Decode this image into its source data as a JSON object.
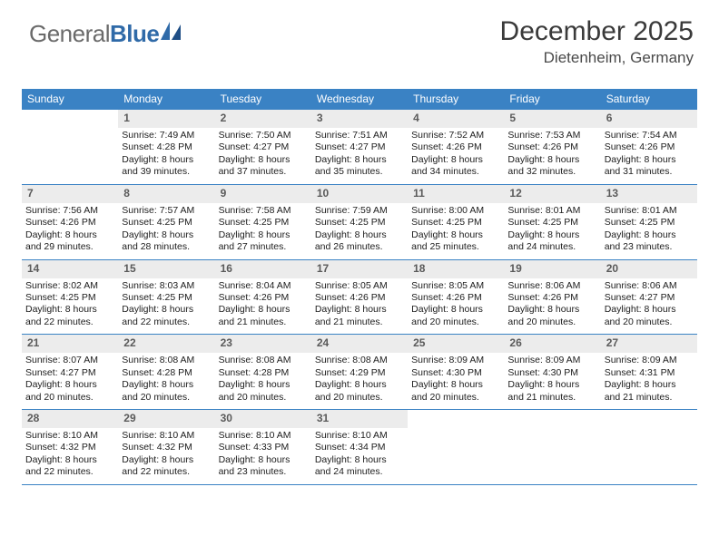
{
  "brand": {
    "part1": "General",
    "part2": "Blue"
  },
  "title": "December 2025",
  "location": "Dietenheim, Germany",
  "colors": {
    "header_bg": "#3a82c4",
    "header_text": "#ffffff",
    "daynum_bg": "#ececec",
    "rule": "#3a82c4",
    "title_color": "#3a3a3a"
  },
  "weekday_headers": [
    "Sunday",
    "Monday",
    "Tuesday",
    "Wednesday",
    "Thursday",
    "Friday",
    "Saturday"
  ],
  "weeks": [
    [
      {
        "n": "",
        "sunrise": "",
        "sunset": "",
        "daylight1": "",
        "daylight2": ""
      },
      {
        "n": "1",
        "sunrise": "Sunrise: 7:49 AM",
        "sunset": "Sunset: 4:28 PM",
        "daylight1": "Daylight: 8 hours",
        "daylight2": "and 39 minutes."
      },
      {
        "n": "2",
        "sunrise": "Sunrise: 7:50 AM",
        "sunset": "Sunset: 4:27 PM",
        "daylight1": "Daylight: 8 hours",
        "daylight2": "and 37 minutes."
      },
      {
        "n": "3",
        "sunrise": "Sunrise: 7:51 AM",
        "sunset": "Sunset: 4:27 PM",
        "daylight1": "Daylight: 8 hours",
        "daylight2": "and 35 minutes."
      },
      {
        "n": "4",
        "sunrise": "Sunrise: 7:52 AM",
        "sunset": "Sunset: 4:26 PM",
        "daylight1": "Daylight: 8 hours",
        "daylight2": "and 34 minutes."
      },
      {
        "n": "5",
        "sunrise": "Sunrise: 7:53 AM",
        "sunset": "Sunset: 4:26 PM",
        "daylight1": "Daylight: 8 hours",
        "daylight2": "and 32 minutes."
      },
      {
        "n": "6",
        "sunrise": "Sunrise: 7:54 AM",
        "sunset": "Sunset: 4:26 PM",
        "daylight1": "Daylight: 8 hours",
        "daylight2": "and 31 minutes."
      }
    ],
    [
      {
        "n": "7",
        "sunrise": "Sunrise: 7:56 AM",
        "sunset": "Sunset: 4:26 PM",
        "daylight1": "Daylight: 8 hours",
        "daylight2": "and 29 minutes."
      },
      {
        "n": "8",
        "sunrise": "Sunrise: 7:57 AM",
        "sunset": "Sunset: 4:25 PM",
        "daylight1": "Daylight: 8 hours",
        "daylight2": "and 28 minutes."
      },
      {
        "n": "9",
        "sunrise": "Sunrise: 7:58 AM",
        "sunset": "Sunset: 4:25 PM",
        "daylight1": "Daylight: 8 hours",
        "daylight2": "and 27 minutes."
      },
      {
        "n": "10",
        "sunrise": "Sunrise: 7:59 AM",
        "sunset": "Sunset: 4:25 PM",
        "daylight1": "Daylight: 8 hours",
        "daylight2": "and 26 minutes."
      },
      {
        "n": "11",
        "sunrise": "Sunrise: 8:00 AM",
        "sunset": "Sunset: 4:25 PM",
        "daylight1": "Daylight: 8 hours",
        "daylight2": "and 25 minutes."
      },
      {
        "n": "12",
        "sunrise": "Sunrise: 8:01 AM",
        "sunset": "Sunset: 4:25 PM",
        "daylight1": "Daylight: 8 hours",
        "daylight2": "and 24 minutes."
      },
      {
        "n": "13",
        "sunrise": "Sunrise: 8:01 AM",
        "sunset": "Sunset: 4:25 PM",
        "daylight1": "Daylight: 8 hours",
        "daylight2": "and 23 minutes."
      }
    ],
    [
      {
        "n": "14",
        "sunrise": "Sunrise: 8:02 AM",
        "sunset": "Sunset: 4:25 PM",
        "daylight1": "Daylight: 8 hours",
        "daylight2": "and 22 minutes."
      },
      {
        "n": "15",
        "sunrise": "Sunrise: 8:03 AM",
        "sunset": "Sunset: 4:25 PM",
        "daylight1": "Daylight: 8 hours",
        "daylight2": "and 22 minutes."
      },
      {
        "n": "16",
        "sunrise": "Sunrise: 8:04 AM",
        "sunset": "Sunset: 4:26 PM",
        "daylight1": "Daylight: 8 hours",
        "daylight2": "and 21 minutes."
      },
      {
        "n": "17",
        "sunrise": "Sunrise: 8:05 AM",
        "sunset": "Sunset: 4:26 PM",
        "daylight1": "Daylight: 8 hours",
        "daylight2": "and 21 minutes."
      },
      {
        "n": "18",
        "sunrise": "Sunrise: 8:05 AM",
        "sunset": "Sunset: 4:26 PM",
        "daylight1": "Daylight: 8 hours",
        "daylight2": "and 20 minutes."
      },
      {
        "n": "19",
        "sunrise": "Sunrise: 8:06 AM",
        "sunset": "Sunset: 4:26 PM",
        "daylight1": "Daylight: 8 hours",
        "daylight2": "and 20 minutes."
      },
      {
        "n": "20",
        "sunrise": "Sunrise: 8:06 AM",
        "sunset": "Sunset: 4:27 PM",
        "daylight1": "Daylight: 8 hours",
        "daylight2": "and 20 minutes."
      }
    ],
    [
      {
        "n": "21",
        "sunrise": "Sunrise: 8:07 AM",
        "sunset": "Sunset: 4:27 PM",
        "daylight1": "Daylight: 8 hours",
        "daylight2": "and 20 minutes."
      },
      {
        "n": "22",
        "sunrise": "Sunrise: 8:08 AM",
        "sunset": "Sunset: 4:28 PM",
        "daylight1": "Daylight: 8 hours",
        "daylight2": "and 20 minutes."
      },
      {
        "n": "23",
        "sunrise": "Sunrise: 8:08 AM",
        "sunset": "Sunset: 4:28 PM",
        "daylight1": "Daylight: 8 hours",
        "daylight2": "and 20 minutes."
      },
      {
        "n": "24",
        "sunrise": "Sunrise: 8:08 AM",
        "sunset": "Sunset: 4:29 PM",
        "daylight1": "Daylight: 8 hours",
        "daylight2": "and 20 minutes."
      },
      {
        "n": "25",
        "sunrise": "Sunrise: 8:09 AM",
        "sunset": "Sunset: 4:30 PM",
        "daylight1": "Daylight: 8 hours",
        "daylight2": "and 20 minutes."
      },
      {
        "n": "26",
        "sunrise": "Sunrise: 8:09 AM",
        "sunset": "Sunset: 4:30 PM",
        "daylight1": "Daylight: 8 hours",
        "daylight2": "and 21 minutes."
      },
      {
        "n": "27",
        "sunrise": "Sunrise: 8:09 AM",
        "sunset": "Sunset: 4:31 PM",
        "daylight1": "Daylight: 8 hours",
        "daylight2": "and 21 minutes."
      }
    ],
    [
      {
        "n": "28",
        "sunrise": "Sunrise: 8:10 AM",
        "sunset": "Sunset: 4:32 PM",
        "daylight1": "Daylight: 8 hours",
        "daylight2": "and 22 minutes."
      },
      {
        "n": "29",
        "sunrise": "Sunrise: 8:10 AM",
        "sunset": "Sunset: 4:32 PM",
        "daylight1": "Daylight: 8 hours",
        "daylight2": "and 22 minutes."
      },
      {
        "n": "30",
        "sunrise": "Sunrise: 8:10 AM",
        "sunset": "Sunset: 4:33 PM",
        "daylight1": "Daylight: 8 hours",
        "daylight2": "and 23 minutes."
      },
      {
        "n": "31",
        "sunrise": "Sunrise: 8:10 AM",
        "sunset": "Sunset: 4:34 PM",
        "daylight1": "Daylight: 8 hours",
        "daylight2": "and 24 minutes."
      },
      {
        "n": "",
        "sunrise": "",
        "sunset": "",
        "daylight1": "",
        "daylight2": ""
      },
      {
        "n": "",
        "sunrise": "",
        "sunset": "",
        "daylight1": "",
        "daylight2": ""
      },
      {
        "n": "",
        "sunrise": "",
        "sunset": "",
        "daylight1": "",
        "daylight2": ""
      }
    ]
  ]
}
